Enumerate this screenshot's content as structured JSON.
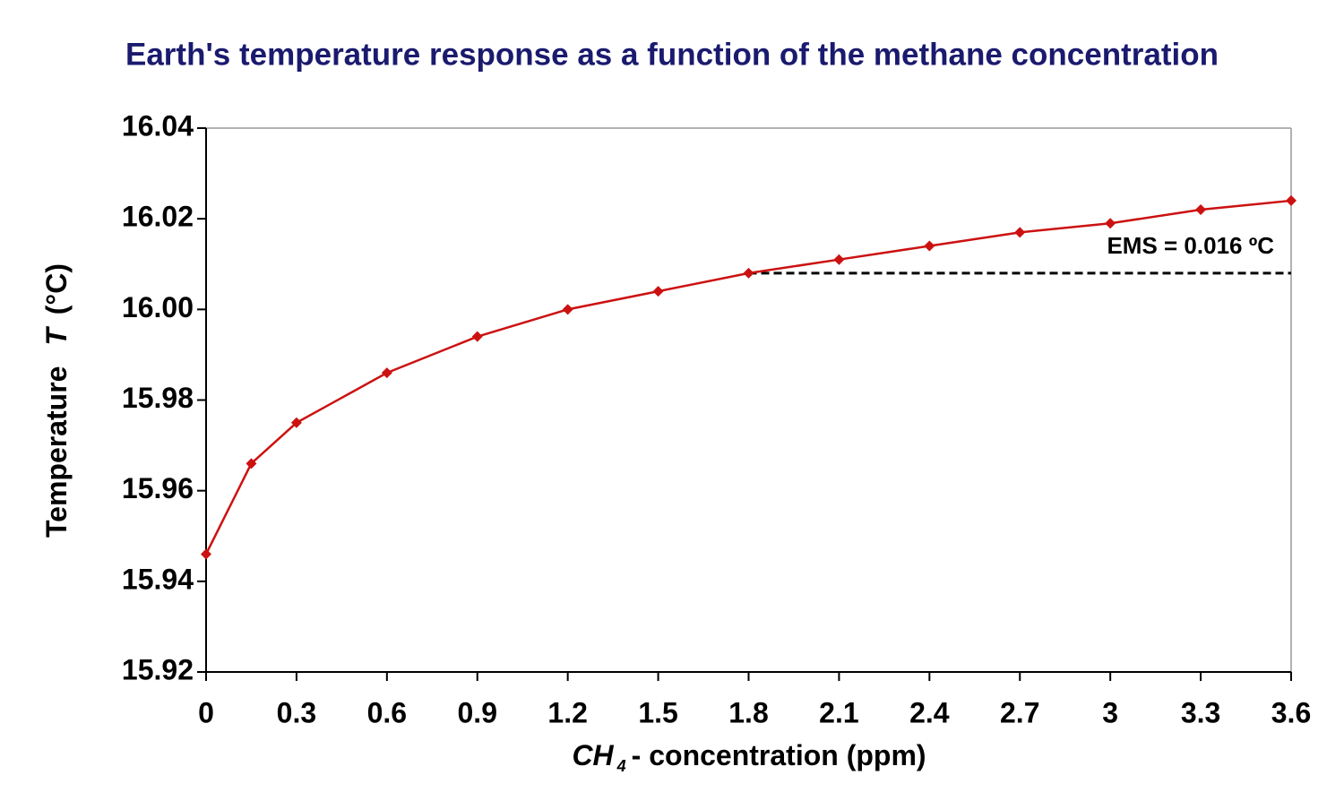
{
  "chart_data": {
    "type": "line",
    "title": "Earth's temperature response as a function of the methane concentration",
    "x_label": {
      "main": "CH",
      "sub": "4",
      "rest": "- concentration (ppm)"
    },
    "y_label": {
      "main": "Temperature ",
      "italic": "T",
      "rest": " (°C)"
    },
    "x": [
      0,
      0.15,
      0.3,
      0.6,
      0.9,
      1.2,
      1.5,
      1.8,
      2.1,
      2.4,
      2.7,
      3.0,
      3.3,
      3.6
    ],
    "values": [
      15.946,
      15.966,
      15.975,
      15.986,
      15.994,
      16.0,
      16.004,
      16.008,
      16.011,
      16.014,
      16.017,
      16.019,
      16.022,
      16.024
    ],
    "color": "#cc1111",
    "xlim": [
      0,
      3.6
    ],
    "ylim": [
      15.92,
      16.04
    ],
    "xticks": [
      0,
      0.3,
      0.6,
      0.9,
      1.2,
      1.5,
      1.8,
      2.1,
      2.4,
      2.7,
      3,
      3.3,
      3.6
    ],
    "yticks": [
      15.92,
      15.94,
      15.96,
      15.98,
      {
        "value": 16.0,
        "label": "16.00"
      },
      16.02,
      16.04
    ],
    "reference_line": {
      "y": 16.008,
      "x": [
        1.8,
        3.6
      ],
      "style": "dashed",
      "color": "#000000"
    },
    "annotation": "EMS = 0.016 ºC",
    "grid": false
  }
}
